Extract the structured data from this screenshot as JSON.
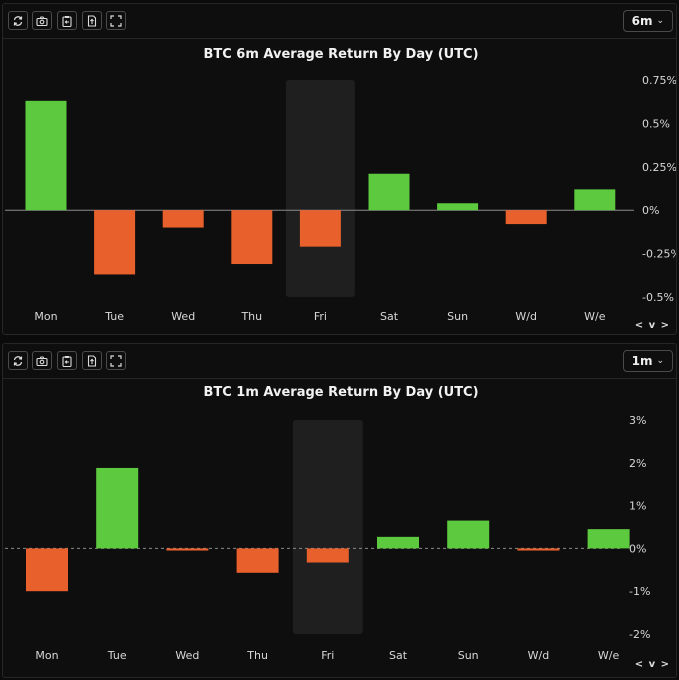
{
  "icons": [
    "refresh-icon",
    "camera-icon",
    "clipboard-icon",
    "export-icon",
    "fullscreen-icon"
  ],
  "scroll_label": "< v >",
  "colors": {
    "positive": "#5cc93e",
    "negative": "#e8602c",
    "highlight": "#1f1f1f",
    "zero_line": "#8a8a8a"
  },
  "chart_data": [
    {
      "type": "bar",
      "range_label": "6m",
      "title": "BTC 6m Average Return By Day (UTC)",
      "categories": [
        "Mon",
        "Tue",
        "Wed",
        "Thu",
        "Fri",
        "Sat",
        "Sun",
        "W/d",
        "W/e"
      ],
      "values": [
        0.63,
        -0.37,
        -0.1,
        -0.31,
        -0.21,
        0.21,
        0.04,
        -0.08,
        0.12
      ],
      "ylim": [
        -0.5,
        0.75
      ],
      "ytick_labels": [
        "0.75%",
        "0.5%",
        "0.25%",
        "0%",
        "-0.25%",
        "-0.5%"
      ],
      "ytick_values": [
        0.75,
        0.5,
        0.25,
        0,
        -0.25,
        -0.5
      ],
      "highlighted_category": "Fri",
      "zero_line": "solid"
    },
    {
      "type": "bar",
      "range_label": "1m",
      "title": "BTC 1m Average Return By Day (UTC)",
      "categories": [
        "Mon",
        "Tue",
        "Wed",
        "Thu",
        "Fri",
        "Sat",
        "Sun",
        "W/d",
        "W/e"
      ],
      "values": [
        -1.0,
        1.88,
        -0.05,
        -0.57,
        -0.33,
        0.27,
        0.65,
        -0.05,
        0.45
      ],
      "ylim": [
        -2,
        3
      ],
      "ytick_labels": [
        "3%",
        "2%",
        "1%",
        "0%",
        "-1%",
        "-2%"
      ],
      "ytick_values": [
        3,
        2,
        1,
        0,
        -1,
        -2
      ],
      "highlighted_category": "Fri",
      "zero_line": "dashed"
    }
  ]
}
